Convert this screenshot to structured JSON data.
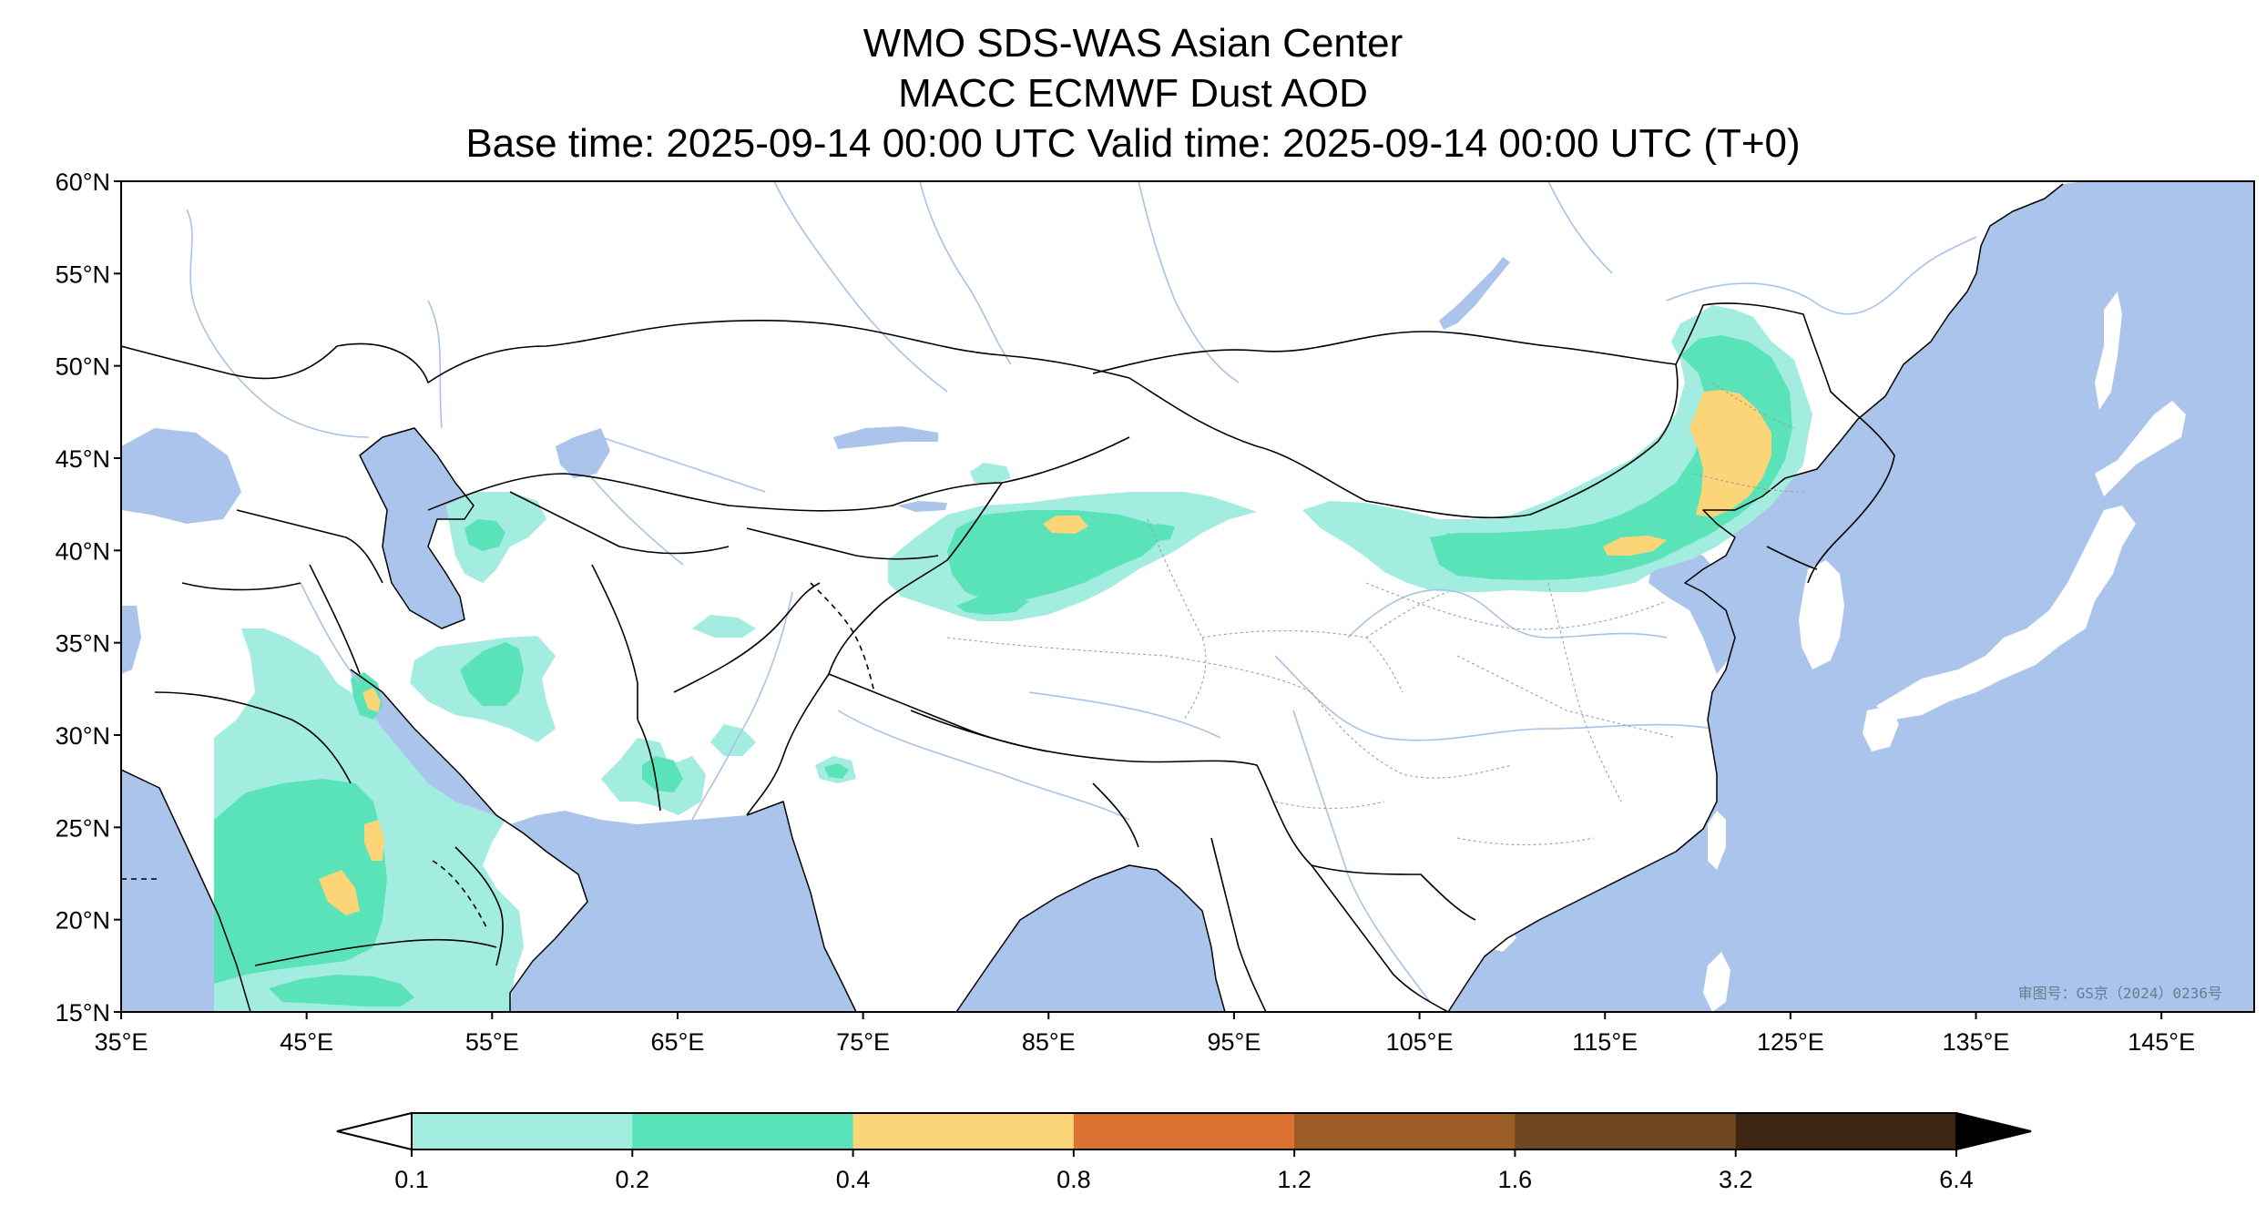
{
  "title": {
    "line1": "WMO SDS-WAS Asian Center",
    "line2": "MACC ECMWF Dust AOD",
    "line3": "Base time: 2025-09-14 00:00 UTC Valid time: 2025-09-14 00:00 UTC (T+0)"
  },
  "map": {
    "lon_range": [
      35,
      150
    ],
    "lat_range": [
      15,
      60
    ],
    "x_ticks": [
      "35°E",
      "45°E",
      "55°E",
      "65°E",
      "75°E",
      "85°E",
      "95°E",
      "105°E",
      "115°E",
      "125°E",
      "135°E",
      "145°E"
    ],
    "y_ticks": [
      "60°N",
      "55°N",
      "50°N",
      "45°N",
      "40°N",
      "35°N",
      "30°N",
      "25°N",
      "20°N",
      "15°N"
    ],
    "ocean_color": "#aac4ec",
    "land_color": "#ffffff",
    "watermark": "审图号：GS京（2024）0236号"
  },
  "colorbar": {
    "levels": [
      "0.1",
      "0.2",
      "0.4",
      "0.8",
      "1.2",
      "1.6",
      "3.2",
      "6.4"
    ],
    "colors": [
      "#a3ece0",
      "#5ae3b9",
      "#fbd578",
      "#db7231",
      "#9c5e26",
      "#6f4820",
      "#3d2511"
    ],
    "extend": "both"
  }
}
